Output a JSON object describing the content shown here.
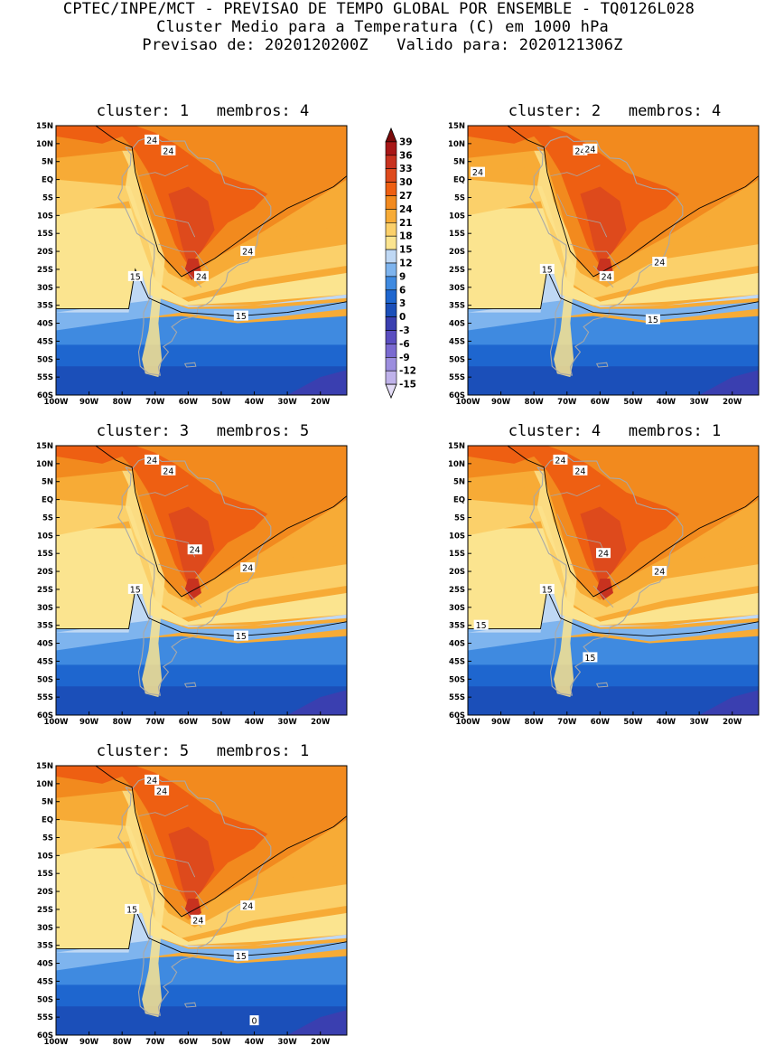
{
  "header": {
    "line1": "CPTEC/INPE/MCT - PREVISAO DE TEMPO GLOBAL POR ENSEMBLE - TQ0126L028",
    "line2": "Cluster Medio para a Temperatura (C) em 1000 hPa",
    "line3": "Previsao de: 2020120200Z   Valido para: 2020121306Z"
  },
  "axes": {
    "lat_labels": [
      "15N",
      "10N",
      "5N",
      "EQ",
      "5S",
      "10S",
      "15S",
      "20S",
      "25S",
      "30S",
      "35S",
      "40S",
      "45S",
      "50S",
      "55S",
      "60S"
    ],
    "lon_labels": [
      "100W",
      "90W",
      "80W",
      "70W",
      "60W",
      "50W",
      "40W",
      "30W",
      "20W"
    ]
  },
  "colorbar": {
    "levels": [
      "39",
      "36",
      "33",
      "30",
      "27",
      "24",
      "21",
      "18",
      "15",
      "12",
      "9",
      "6",
      "3",
      "0",
      "-3",
      "-6",
      "-9",
      "-12",
      "-15"
    ],
    "colors": [
      "#7a0a0a",
      "#a81717",
      "#c8321f",
      "#de4a1c",
      "#ee5f12",
      "#f28a1e",
      "#f7ab36",
      "#fbd06a",
      "#fbe48f",
      "#bfd8f4",
      "#7eb4ee",
      "#3f8ae0",
      "#1e66cf",
      "#1b4fb9",
      "#3a3fb0",
      "#5a4ec0",
      "#7a6ad0",
      "#9c8ede",
      "#bfb2ea",
      "#e3dcf6"
    ]
  },
  "panels": [
    {
      "id": "1",
      "title": "cluster: 1   membros: 4",
      "labels": [
        "24",
        "24",
        "24",
        "24",
        "15",
        "15"
      ]
    },
    {
      "id": "2",
      "title": "cluster: 2   membros: 4",
      "labels": [
        "24",
        "24",
        "24",
        "24",
        "24",
        "15",
        "15"
      ]
    },
    {
      "id": "3",
      "title": "cluster: 3   membros: 5",
      "labels": [
        "24",
        "24",
        "24",
        "24",
        "15",
        "15"
      ]
    },
    {
      "id": "4",
      "title": "cluster: 4   membros: 1",
      "labels": [
        "24",
        "24",
        "24",
        "24",
        "15",
        "15",
        "15"
      ]
    },
    {
      "id": "5",
      "title": "cluster: 5   membros: 1",
      "labels": [
        "24",
        "24",
        "24",
        "24",
        "15",
        "15",
        "0"
      ]
    }
  ]
}
